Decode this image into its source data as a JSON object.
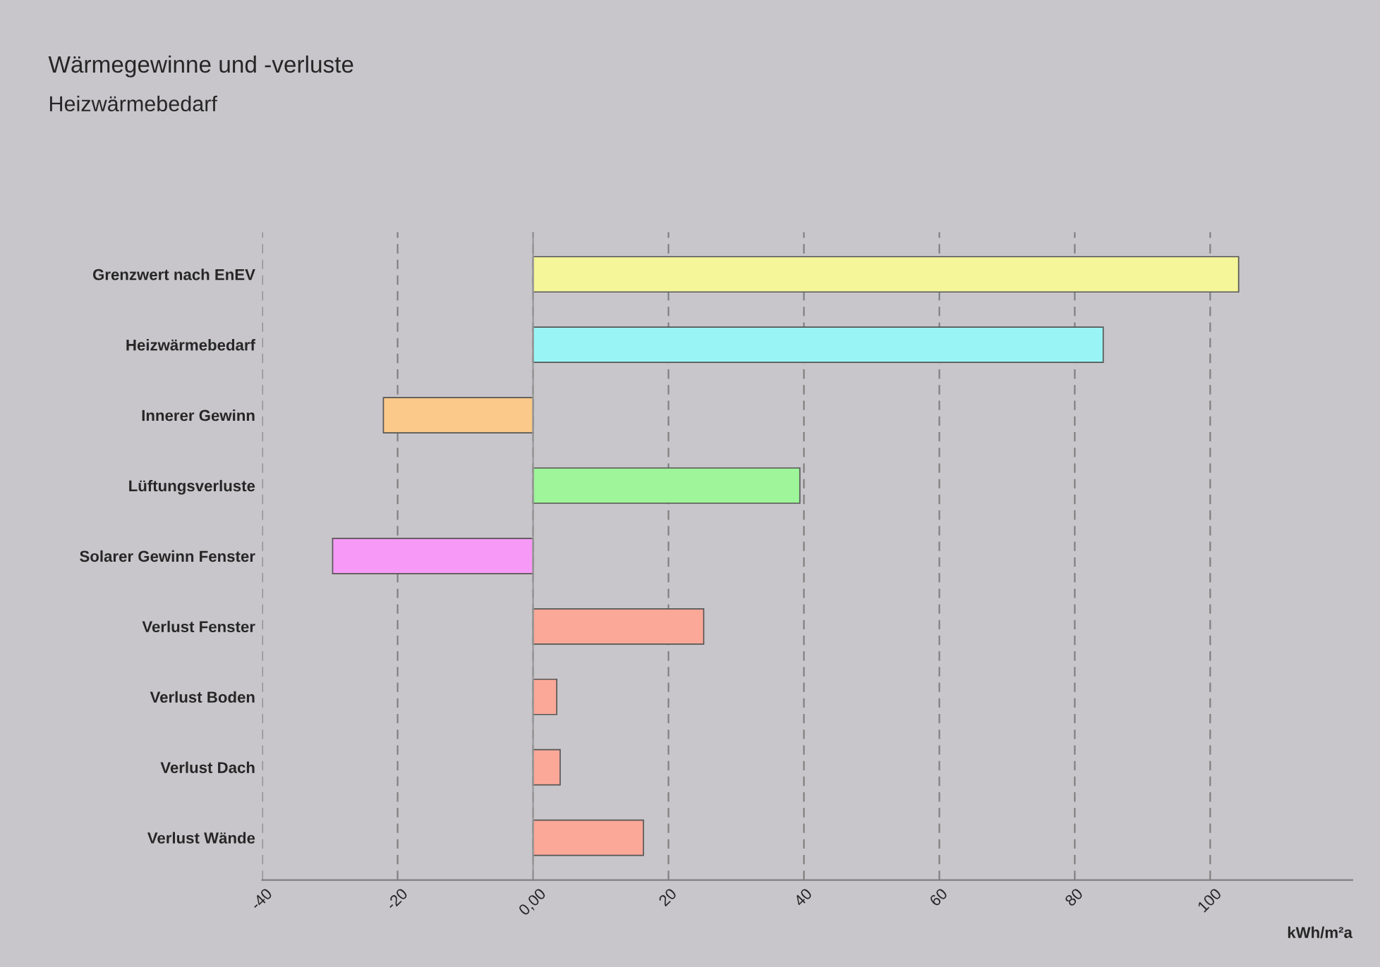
{
  "chart_data": {
    "type": "bar",
    "orientation": "horizontal",
    "title": "Wärmegewinne und -verluste",
    "subtitle": "Heizwärmebedarf",
    "xlabel": "kWh/m²a",
    "categories": [
      "Grenzwert nach EnEV",
      "Heizwärmebedarf",
      "Innerer Gewinn",
      "Lüftungsverluste",
      "Solarer Gewinn Fenster",
      "Verlust Fenster",
      "Verlust Boden",
      "Verlust Dach",
      "Verlust Wände"
    ],
    "values": [
      104.2,
      84.2,
      -22.1,
      39.4,
      -29.6,
      25.2,
      3.5,
      4.0,
      16.3
    ],
    "colors": [
      "#f5f59a",
      "#99f5f5",
      "#fbc98a",
      "#9ef59a",
      "#f79af7",
      "#fba899",
      "#fba899",
      "#fba899",
      "#fba899"
    ],
    "xlim": [
      -40,
      121
    ],
    "xticks": [
      -40,
      -20,
      {
        "value": 0,
        "label": "0,00"
      },
      20,
      40,
      60,
      80,
      100
    ],
    "grid": "x"
  }
}
